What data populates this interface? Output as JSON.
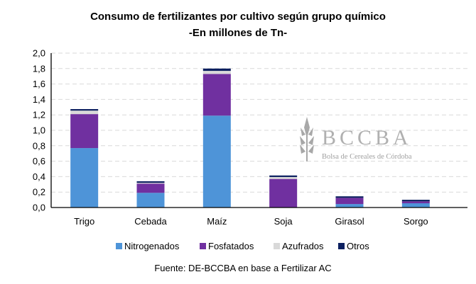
{
  "chart_data": {
    "type": "bar",
    "stacked": true,
    "title": "Consumo de fertilizantes por cultivo según grupo químico",
    "subtitle": "-En millones de Tn-",
    "source": "Fuente: DE-BCCBA en base a Fertilizar AC",
    "categories": [
      "Trigo",
      "Cebada",
      "Maíz",
      "Soja",
      "Girasol",
      "Sorgo"
    ],
    "series": [
      {
        "name": "Nitrogenados",
        "color": "#4E94D8",
        "values": [
          0.77,
          0.19,
          1.19,
          0.0,
          0.045,
          0.055
        ]
      },
      {
        "name": "Fosfatados",
        "color": "#7030A0",
        "values": [
          0.44,
          0.12,
          0.54,
          0.37,
          0.08,
          0.025
        ]
      },
      {
        "name": "Azufrados",
        "color": "#D9D9D9",
        "values": [
          0.045,
          0.01,
          0.04,
          0.025,
          0.0,
          0.0
        ]
      },
      {
        "name": "Otros",
        "color": "#0C2060",
        "values": [
          0.02,
          0.02,
          0.03,
          0.02,
          0.02,
          0.02
        ]
      }
    ],
    "ylim": [
      0,
      2.0
    ],
    "yticks": [
      "0,0",
      "0,2",
      "0,4",
      "0,6",
      "0,8",
      "1,0",
      "1,2",
      "1,4",
      "1,6",
      "1,8",
      "2,0"
    ],
    "grid": true,
    "legend": "bottom",
    "watermark": {
      "title": "BCCBA",
      "subtitle": "Bolsa de Cereales de Córdoba"
    }
  }
}
